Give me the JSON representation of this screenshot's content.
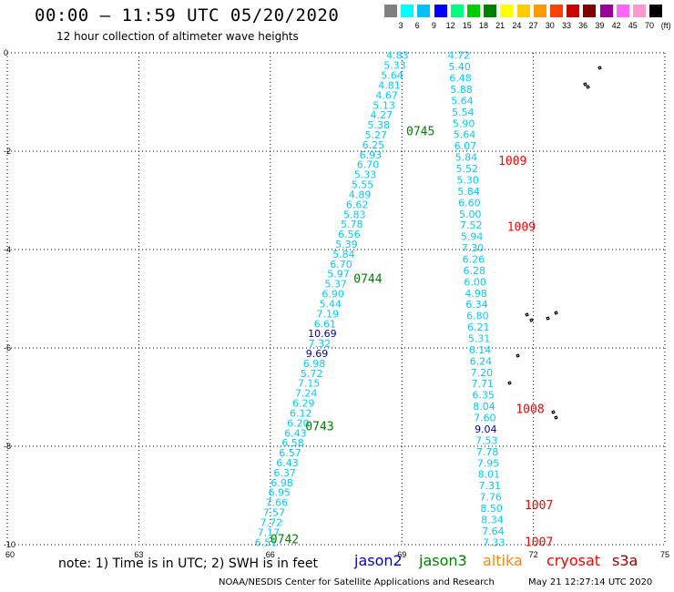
{
  "header": {
    "title": "00:00 – 11:59 UTC 05/20/2020",
    "subtitle": "12 hour collection of altimeter wave heights"
  },
  "colorbar": {
    "colors": [
      "#808080",
      "#00ffff",
      "#00bfff",
      "#0000ff",
      "#00ff80",
      "#00cc00",
      "#008000",
      "#ffff00",
      "#ffcc00",
      "#ff9900",
      "#ff4000",
      "#cc0000",
      "#800000",
      "#990099",
      "#ff66ff",
      "#ff99cc",
      "#000000"
    ],
    "labels": [
      "3",
      "6",
      "9",
      "12",
      "15",
      "18",
      "21",
      "24",
      "27",
      "30",
      "33",
      "36",
      "39",
      "42",
      "45",
      "70",
      "(ft)"
    ]
  },
  "chart_data": {
    "type": "scatter",
    "xlim": [
      60,
      75
    ],
    "ylim": [
      -10,
      0
    ],
    "x_ticks": [
      "60",
      "63",
      "66",
      "69",
      "72",
      "75"
    ],
    "y_ticks": [
      "0",
      "-2",
      "-4",
      "-6",
      "-8",
      "-10"
    ],
    "grid": true,
    "colors": {
      "s3a": "#00ccff",
      "cryosat": "#ff0000",
      "jason3": "#008000",
      "jason2": "#0000ff",
      "altika": "#ff8800",
      "high": "#000099"
    },
    "tracks": [
      {
        "satellite": "s3a",
        "x_start": 68.9,
        "x_end": 65.9,
        "y_start": -0.05,
        "y_end": -9.95,
        "values": [
          "4.83",
          "5.33",
          "5.64",
          "4.81",
          "4.67",
          "5.13",
          "4.27",
          "5.38",
          "5.27",
          "6.25",
          "6.93",
          "6.70",
          "5.33",
          "5.55",
          "4.89",
          "6.62",
          "5.83",
          "5.78",
          "6.56",
          "5.39",
          "5.84",
          "6.70",
          "5.97",
          "5.37",
          "6.90",
          "5.44",
          "7.19",
          "6.61",
          "10.69",
          "7.32",
          "9.69",
          "6.98",
          "5.72",
          "7.15",
          "7.24",
          "6.29",
          "6.12",
          "6.20",
          "6.43",
          "6.58",
          "6.57",
          "6.43",
          "6.37",
          "6.98",
          "6.95",
          "7.66",
          "7.57",
          "7.72",
          "7.17",
          "6.51"
        ]
      },
      {
        "satellite": "s3a",
        "x_start": 70.3,
        "x_end": 71.1,
        "y_start": -0.05,
        "y_end": -9.95,
        "values": [
          "4.72",
          "5.40",
          "6.48",
          "5.88",
          "5.64",
          "5.54",
          "5.90",
          "5.64",
          "6.07",
          "5.84",
          "5.52",
          "5.30",
          "5.84",
          "6.60",
          "5.00",
          "7.52",
          "5.94",
          "7.30",
          "6.26",
          "6.28",
          "6.00",
          "4.98",
          "6.34",
          "6.80",
          "6.21",
          "5.31",
          "6.14",
          "6.24",
          "7.20",
          "7.71",
          "6.35",
          "8.04",
          "7.60",
          "9.04",
          "7.53",
          "7.78",
          "7.95",
          "8.01",
          "7.31",
          "7.76",
          "8.50",
          "8.34",
          "7.64",
          "7.33"
        ]
      }
    ],
    "time_labels": [
      {
        "text": "0745",
        "x": 69.1,
        "y": -1.6,
        "color": "#008000"
      },
      {
        "text": "0744",
        "x": 67.9,
        "y": -4.6,
        "color": "#008000"
      },
      {
        "text": "0743",
        "x": 66.8,
        "y": -7.6,
        "color": "#008000"
      },
      {
        "text": "0742",
        "x": 66.0,
        "y": -9.9,
        "color": "#008000"
      },
      {
        "text": "1009",
        "x": 71.2,
        "y": -2.2,
        "color": "#ff0000"
      },
      {
        "text": "1009",
        "x": 71.4,
        "y": -3.55,
        "color": "#ff0000"
      },
      {
        "text": "1008",
        "x": 71.6,
        "y": -7.25,
        "color": "#ff0000"
      },
      {
        "text": "1007",
        "x": 71.8,
        "y": -9.2,
        "color": "#ff0000"
      },
      {
        "text": "1007",
        "x": 71.8,
        "y": -9.95,
        "color": "#ff0000"
      }
    ]
  },
  "footer": {
    "note": "note:  1) Time is in UTC;  2) SWH is in feet",
    "credit": "NOAA/NESDIS Center for Satellite Applications and Research",
    "timestamp": "May 21 12:27:14 UTC 2020"
  },
  "legend": [
    {
      "label": "jason2",
      "color": "#0000cc"
    },
    {
      "label": "jason3",
      "color": "#008000"
    },
    {
      "label": "altika",
      "color": "#ff8800"
    },
    {
      "label": "cryosat",
      "color": "#ff0000"
    },
    {
      "label": "s3a",
      "color": "#990000"
    }
  ]
}
